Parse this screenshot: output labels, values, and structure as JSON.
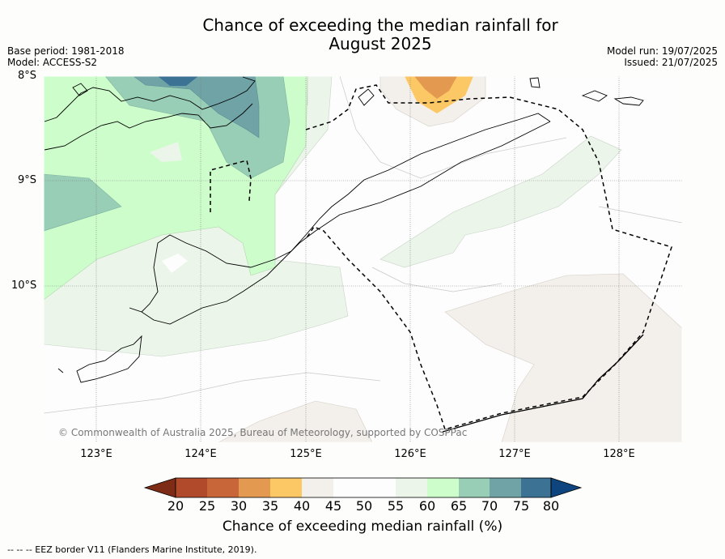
{
  "title_line1": "Chance of exceeding the median rainfall for",
  "title_line2": "August 2025",
  "base_period": "Base period: 1981-2018",
  "model": "Model: ACCESS-S2",
  "model_run": "Model run: 19/07/2025",
  "issued": "Issued: 21/07/2025",
  "lat_labels": [
    "8°S",
    "9°S",
    "10°S"
  ],
  "lon_labels": [
    "123°E",
    "124°E",
    "125°E",
    "126°E",
    "127°E",
    "128°E"
  ],
  "copyright": "© Commonwealth of Australia 2025, Bureau of Meteorology, supported by COSPPac",
  "colorbar": {
    "title": "Chance of exceeding median rainfall (%)",
    "ticks": [
      "20",
      "25",
      "30",
      "35",
      "40",
      "45",
      "50",
      "55",
      "60",
      "65",
      "70",
      "75",
      "80"
    ],
    "colors": [
      "#7f2c17",
      "#b04a2b",
      "#c8663a",
      "#e39a50",
      "#fcc865",
      "#f3efea",
      "#fcfdfc",
      "#fcfdfc",
      "#ecf5ea",
      "#cdfdcb",
      "#98cdb6",
      "#6fa3a6",
      "#3c7394",
      "#0f457f"
    ]
  },
  "footnote": "-- -- -- EEZ border V11 (Flanders Marine Institute, 2019)."
}
